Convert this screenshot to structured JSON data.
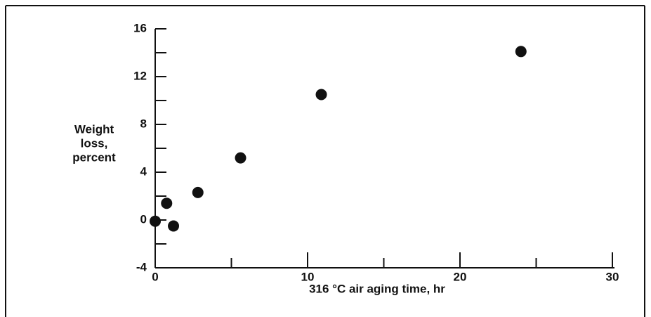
{
  "chart_data": {
    "type": "scatter",
    "xlabel": "316 °C air aging time, hr",
    "ylabel": [
      "Weight",
      "loss,",
      "percent"
    ],
    "x": [
      0,
      0.75,
      1.2,
      2.8,
      5.6,
      10.9,
      24.0
    ],
    "values": [
      -0.1,
      1.4,
      -0.5,
      2.3,
      5.2,
      10.5,
      14.1
    ],
    "color": "#111111",
    "xlim": [
      0,
      30
    ],
    "xticks": [
      0,
      10,
      20,
      30
    ],
    "xminor": [
      5,
      15,
      25
    ],
    "ylim": [
      -4,
      16
    ],
    "yticks": [
      -4,
      0,
      4,
      8,
      12,
      16
    ],
    "yminor": [
      -2,
      2,
      6,
      10,
      14
    ]
  }
}
